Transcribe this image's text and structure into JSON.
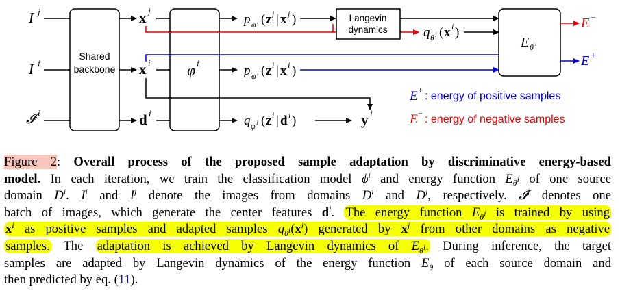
{
  "figure": {
    "inputs": {
      "ij": "I",
      "ij_sup": "j",
      "ii": "I",
      "ii_sup": "i",
      "calI": "𝓘",
      "calI_sup": "i"
    },
    "backbone": {
      "line1": "Shared",
      "line2": "backbone"
    },
    "features": {
      "xj": "x",
      "xj_sup": "j",
      "xi": "x",
      "xi_sup": "i",
      "di": "d",
      "di_sup": "i"
    },
    "phi": {
      "label": "φ",
      "sup": "i"
    },
    "distributions": {
      "p_xj": "p_{φ^i}(z^j|x^j)",
      "p_xi": "p_{φ^i}(z^i|x^i)",
      "q_di": "q_{φ^i}(z^i|d^i)",
      "q_theta": "q_{θ^i}(x^i)"
    },
    "langevin": {
      "line1": "Langevin",
      "line2": "dynamics"
    },
    "energy": {
      "label": "E",
      "sub": "θ^i"
    },
    "outputs": {
      "neg": "E",
      "neg_sup": "−",
      "pos": "E",
      "pos_sup": "+",
      "y": "y",
      "y_sup": "i"
    },
    "legend": {
      "pos_text": ": energy of positive samples",
      "neg_text": ": energy of negative samples"
    },
    "colors": {
      "neg": "#ee0000",
      "pos": "#0000dd",
      "black": "#000000"
    }
  },
  "caption": {
    "figref": "Figure 2",
    "colon": ":",
    "bold": "Overall process of the proposed sample adaptation by discriminative energy-based model.",
    "s1": "In each iteration, we train the classification model φ^i and energy function E_{θ^i} of one source domain D^i. I^i and I^j denote the images from domains D^i and D^j, respectively. 𝓘^i denotes one batch of images, which generate the center features d^i.",
    "hl1": "The energy function E_{θ^i} is trained by using x^i as positive samples and adapted samples q_{θ^i}(x^i) generated by x^j from other domains as negative samples.",
    "s2": "The",
    "hl2": "adaptation is achieved by Langevin dynamics of E_{θ^i}.",
    "s3": "During inference, the target samples are adapted by Langevin dynamics of the energy function E_θ of each source domain and then predicted by eq. (11).",
    "eq_ref": "11"
  }
}
